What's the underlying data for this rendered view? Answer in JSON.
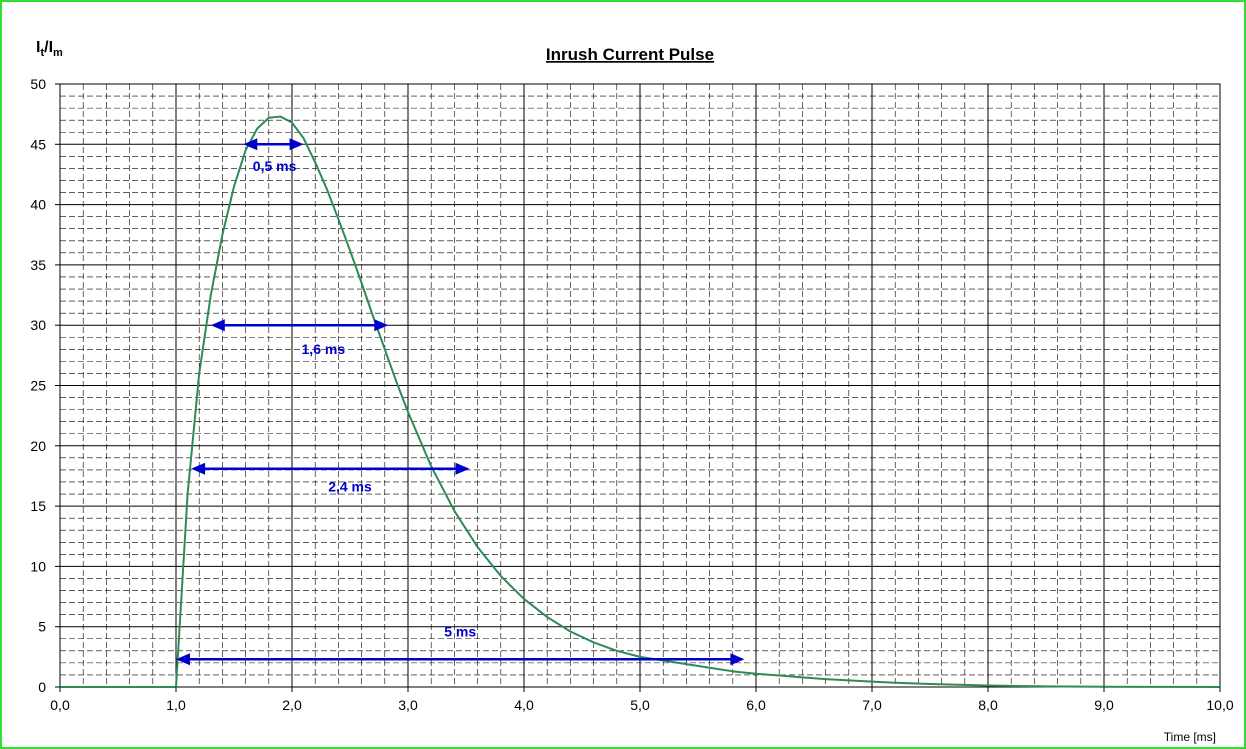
{
  "colors": {
    "frame_border": "#33dd33",
    "curve": "#2e8b57",
    "annotation": "#0000cc",
    "grid_major": "#000000",
    "grid_minor": "#000000"
  },
  "chart_data": {
    "type": "line",
    "title": "Inrush Current Pulse",
    "ylabel": {
      "main": "I",
      "sub1": "t",
      "mid": "/I",
      "sub2": "m"
    },
    "xlabel": "Time [ms]",
    "xlim": [
      0,
      10
    ],
    "ylim": [
      0,
      50
    ],
    "x_ticks": [
      {
        "value": 0,
        "label": "0,0"
      },
      {
        "value": 1,
        "label": "1,0"
      },
      {
        "value": 2,
        "label": "2,0"
      },
      {
        "value": 3,
        "label": "3,0"
      },
      {
        "value": 4,
        "label": "4,0"
      },
      {
        "value": 5,
        "label": "5,0"
      },
      {
        "value": 6,
        "label": "6,0"
      },
      {
        "value": 7,
        "label": "7,0"
      },
      {
        "value": 8,
        "label": "8,0"
      },
      {
        "value": 9,
        "label": "9,0"
      },
      {
        "value": 10,
        "label": "10,0"
      }
    ],
    "y_ticks": [
      {
        "value": 0,
        "label": "0"
      },
      {
        "value": 5,
        "label": "5"
      },
      {
        "value": 10,
        "label": "10"
      },
      {
        "value": 15,
        "label": "15"
      },
      {
        "value": 20,
        "label": "20"
      },
      {
        "value": 25,
        "label": "25"
      },
      {
        "value": 30,
        "label": "30"
      },
      {
        "value": 35,
        "label": "35"
      },
      {
        "value": 40,
        "label": "40"
      },
      {
        "value": 45,
        "label": "45"
      },
      {
        "value": 50,
        "label": "50"
      }
    ],
    "grid": {
      "major": true,
      "minor": true,
      "minor_x_step": 0.2,
      "minor_y_step": 1
    },
    "series": [
      {
        "x": [
          0,
          0.5,
          1.0,
          1.05,
          1.1,
          1.15,
          1.2,
          1.3,
          1.4,
          1.5,
          1.6,
          1.7,
          1.8,
          1.9,
          2.0,
          2.1,
          2.2,
          2.3,
          2.4,
          2.5,
          2.6,
          2.7,
          2.8,
          2.9,
          3.0,
          3.2,
          3.4,
          3.6,
          3.8,
          4.0,
          4.2,
          4.4,
          4.6,
          4.8,
          5.0,
          5.2,
          5.4,
          5.6,
          5.8,
          6.0,
          6.2,
          6.4,
          6.6,
          6.8,
          7.0,
          7.2,
          7.5,
          8.0,
          8.5,
          9.0,
          9.5,
          10.0
        ],
        "y": [
          0,
          0,
          0,
          8,
          16,
          21,
          26,
          32.5,
          37.5,
          41.5,
          44.5,
          46.3,
          47.2,
          47.3,
          46.8,
          45.5,
          43.5,
          41.3,
          38.8,
          36.2,
          33.5,
          30.7,
          28.0,
          25.3,
          22.8,
          18.3,
          14.6,
          11.6,
          9.2,
          7.3,
          5.8,
          4.6,
          3.7,
          3.0,
          2.5,
          2.2,
          1.9,
          1.6,
          1.3,
          1.1,
          0.95,
          0.8,
          0.65,
          0.55,
          0.45,
          0.35,
          0.25,
          0.12,
          0.05,
          0.02,
          0.01,
          0
        ]
      }
    ],
    "annotations": [
      {
        "label": "0,5 ms",
        "x_start": 1.58,
        "x_end": 2.1,
        "y": 45,
        "label_x": 1.85,
        "label_y": 42.8
      },
      {
        "label": "1,6 ms",
        "x_start": 1.3,
        "x_end": 2.83,
        "y": 30,
        "label_x": 2.27,
        "label_y": 27.6
      },
      {
        "label": "2,4 ms",
        "x_start": 1.13,
        "x_end": 3.53,
        "y": 18.1,
        "label_x": 2.5,
        "label_y": 16.2
      },
      {
        "label": "5 ms",
        "x_start": 1.0,
        "x_end": 5.9,
        "y": 2.3,
        "label_x": 3.45,
        "label_y": 4.2
      }
    ]
  }
}
